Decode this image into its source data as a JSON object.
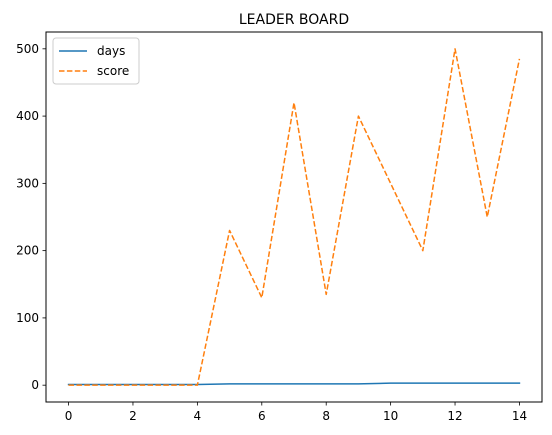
{
  "chart_data": {
    "type": "line",
    "title": "LEADER BOARD",
    "xlabel": "",
    "ylabel": "",
    "x": [
      0,
      1,
      2,
      3,
      4,
      5,
      6,
      7,
      8,
      9,
      10,
      11,
      12,
      13,
      14
    ],
    "xlim": [
      -0.7,
      14.7
    ],
    "ylim": [
      -25,
      525
    ],
    "x_ticks": [
      0,
      2,
      4,
      6,
      8,
      10,
      12,
      14
    ],
    "y_ticks": [
      0,
      100,
      200,
      300,
      400,
      500
    ],
    "grid": false,
    "legend_position": "upper-left",
    "series": [
      {
        "name": "days",
        "color": "#1f77b4",
        "dash": "solid",
        "values": [
          1,
          1,
          1,
          1,
          1,
          2,
          2,
          2,
          2,
          2,
          3,
          3,
          3,
          3,
          3
        ]
      },
      {
        "name": "score",
        "color": "#ff7f0e",
        "dash": "dashed",
        "values": [
          0,
          0,
          0,
          0,
          0,
          230,
          130,
          420,
          135,
          400,
          300,
          200,
          500,
          250,
          485
        ]
      }
    ]
  }
}
